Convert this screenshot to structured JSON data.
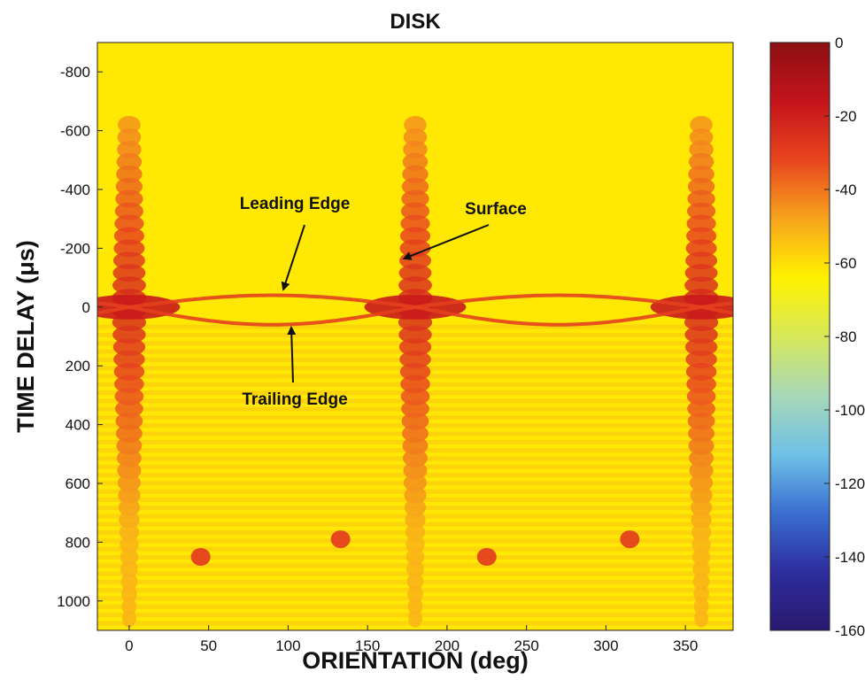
{
  "chart_data": {
    "type": "heatmap",
    "title": "DISK",
    "xlabel": "ORIENTATION (deg)",
    "ylabel": "TIME DELAY (μs)",
    "xlim": [
      -20,
      380
    ],
    "ylim": [
      -900,
      1100
    ],
    "y_inverted": true,
    "x_ticks": [
      0,
      50,
      100,
      150,
      200,
      250,
      300,
      350
    ],
    "y_ticks": [
      -800,
      -600,
      -400,
      -200,
      0,
      200,
      400,
      600,
      800,
      1000
    ],
    "colorbar": {
      "range": [
        -160,
        0
      ],
      "ticks": [
        0,
        -20,
        -40,
        -60,
        -80,
        -100,
        -120,
        -140,
        -160
      ],
      "colormap": [
        "#2a1a6e",
        "#2d2d9e",
        "#3a6fd0",
        "#6fc1e6",
        "#a8d8b8",
        "#d6e85a",
        "#fff200",
        "#f7a41c",
        "#e8461e",
        "#c4141c",
        "#8b0f12"
      ]
    },
    "background_level_db": -62,
    "features": [
      {
        "name": "specular surface peak",
        "orientation": [
          0,
          180,
          360
        ],
        "time_delay_center": 0,
        "peak_db": -20
      },
      {
        "name": "leading edge curve",
        "orientation_range": [
          -20,
          380
        ],
        "time_delay_min": -40,
        "time_delay_max": 0
      },
      {
        "name": "trailing edge curve",
        "orientation_range": [
          -20,
          380
        ],
        "time_delay_min": 0,
        "time_delay_max": 60
      },
      {
        "name": "isolated spot",
        "orientation": 45,
        "time_delay": 850
      },
      {
        "name": "isolated spot",
        "orientation": 133,
        "time_delay": 790
      },
      {
        "name": "isolated spot",
        "orientation": 225,
        "time_delay": 850
      },
      {
        "name": "isolated spot",
        "orientation": 315,
        "time_delay": 790
      }
    ],
    "annotations": [
      {
        "text": "Leading Edge",
        "arrow_to": {
          "orientation": 97,
          "time_delay": -60
        }
      },
      {
        "text": "Surface",
        "arrow_to": {
          "orientation": 173,
          "time_delay": -165
        }
      },
      {
        "text": "Trailing Edge",
        "arrow_to": {
          "orientation": 102,
          "time_delay": 70
        }
      }
    ]
  }
}
